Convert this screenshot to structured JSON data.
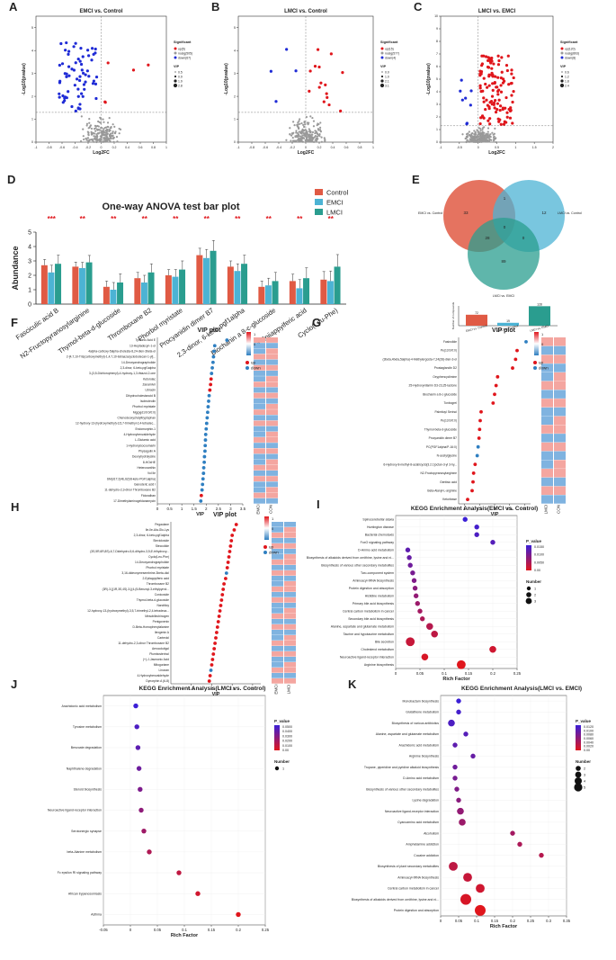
{
  "panels": {
    "A": {
      "letter": "A",
      "title": "EMCI vs. Control",
      "xlabel": "Log2FC",
      "ylabel": "-Log10(pvalue)",
      "legend_title": "Significant",
      "legend": [
        "up(5)",
        "nosig(505)",
        "down(67)"
      ],
      "vip_title": "VIP",
      "vip_vals": [
        "0.5",
        "0.9",
        "1.9",
        "2.8"
      ],
      "xticks": [
        "-1",
        "-0.8",
        "-0.6",
        "-0.4",
        "-0.2",
        "0",
        "0.2",
        "0.4",
        "0.6",
        "0.8",
        "1"
      ],
      "yticks": [
        "0",
        "1",
        "2",
        "3",
        "4",
        "5"
      ]
    },
    "B": {
      "letter": "B",
      "title": "LMCI vs. Control",
      "xlabel": "Log2FC",
      "ylabel": "-Log10(pvalue)",
      "legend_title": "Significant",
      "legend": [
        "up(15)",
        "nosig(577)",
        "down(4)"
      ],
      "vip_title": "VIP",
      "vip_vals": [
        "0.0",
        "1.0",
        "2.1",
        "3.1"
      ],
      "xticks": [
        "-1",
        "-0.8",
        "-0.6",
        "-0.4",
        "-0.2",
        "0",
        "0.2",
        "0.4",
        "0.6",
        "0.8",
        "1"
      ],
      "yticks": [
        "0",
        "1",
        "2",
        "3",
        "4",
        "5"
      ]
    },
    "C": {
      "letter": "C",
      "title": "LMCI vs. EMCI",
      "xlabel": "Log2FC",
      "ylabel": "-Log10(pvalue)",
      "legend_title": "Significant",
      "legend": [
        "up(120)",
        "nosig(893)",
        "down(8)"
      ],
      "vip_title": "VIP",
      "vip_vals": [
        "0.6",
        "1.2",
        "1.8",
        "2.4"
      ],
      "xticks": [
        "-1",
        "-0.5",
        "0",
        "0.5",
        "1",
        "1.5",
        "2"
      ],
      "yticks": [
        "0",
        "1",
        "2",
        "3",
        "4",
        "5",
        "6",
        "7",
        "8",
        "9",
        "10"
      ]
    },
    "E": {
      "letter": "E",
      "venn_labels": [
        "EMCI vs. Control",
        "LMCI vs. Control",
        "LMCI vs. EMCI"
      ],
      "venn_counts": [
        "33",
        "1",
        "12",
        "0",
        "28",
        "0",
        "89"
      ],
      "bar_ylabel": "Number of compounds",
      "bar_cats": [
        "EMCI vs. Control",
        "LMCI vs. Control",
        "LMCI vs. EMCI"
      ],
      "bar_vals": [
        "72",
        "19",
        "128"
      ]
    },
    "H": {
      "letter": "H",
      "title": "VIP plot",
      "xlabel": "VIP",
      "legend": [
        "up",
        "down"
      ],
      "heat_cols": [
        "EMCI",
        "LMCI"
      ]
    }
  },
  "chart_data": [
    {
      "id": "D",
      "type": "bar",
      "letter": "D",
      "title": "One-way ANOVA test bar plot",
      "ylabel": "Abundance",
      "ylim": [
        0,
        5
      ],
      "yticks": [
        "0",
        "1",
        "2",
        "3",
        "4",
        "5"
      ],
      "categories": [
        "Fasciculic acid B",
        "N2-Fructopyranosylarginine",
        "Thymol-beta-d-glucoside",
        "Thromboxane B2",
        "Phorbol myristate",
        "Procyanidin dimer B7",
        "2,3-dinor, 6-keto-pgf1alpha",
        "Biochanin a 8-c-glucoside",
        "3-Epiiappyiferic acid",
        "Cyclo(Leu-Phe)"
      ],
      "series": [
        {
          "name": "Control",
          "color": "#e05a44",
          "values": [
            2.7,
            2.6,
            1.2,
            1.8,
            2.0,
            3.4,
            2.6,
            1.2,
            1.6,
            1.7
          ]
        },
        {
          "name": "EMCI",
          "color": "#4cb3d4",
          "values": [
            2.2,
            2.5,
            1.0,
            1.5,
            1.9,
            3.2,
            2.3,
            1.3,
            1.1,
            1.6
          ]
        },
        {
          "name": "LMCI",
          "color": "#2a9d8f",
          "values": [
            2.8,
            2.9,
            1.5,
            2.2,
            2.4,
            3.7,
            2.8,
            1.6,
            1.8,
            2.6
          ]
        }
      ],
      "errors": [
        0.5,
        0.4,
        0.5,
        0.5,
        0.5,
        0.6,
        0.5,
        0.5,
        0.6,
        0.7
      ],
      "stars": [
        "***",
        "**",
        "**",
        "**",
        "**",
        "**",
        "**",
        "**",
        "**",
        "**"
      ]
    },
    {
      "id": "F",
      "type": "scatter",
      "letter": "F",
      "title": "VIP plot",
      "xlabel": "VIP",
      "xlim": [
        0,
        3.5
      ],
      "xticks": [
        "0",
        "0.5",
        "1",
        "1.5",
        "2",
        "2.5",
        "3",
        "3.5"
      ],
      "legend": [
        "up",
        "down"
      ],
      "heat_cols": [
        "EMCI",
        "CON"
      ],
      "scale_vals": [
        "0",
        "1"
      ],
      "labels": [
        "Tymonic Acid E",
        "13-Heptadecyn-1-ol",
        "4alpha-carboxy-5alpha-cholesta-8,24-dien-3beta-ol",
        "2-[4,7,10-Tris(carboxymethyl)-1,4,7,10-tetraazacyclododecan-1-yl]...",
        "14-Deoxyandrographolide",
        "2,3-dinor, 6-keto-pgf1alpha",
        "3-(3,5-Dichlorophenyl)-4-hydroxy-1,3-thiazol-2-one",
        "Ketorolac",
        "Zanamivir",
        "Libracin",
        "Dihydrocholestanoid B",
        "Isobruteolin",
        "Phorbol myristate",
        "Mg(pgd1/0:0/0:0)",
        "Chenodeoxycholyltryptophan",
        "12-hydroxy-13-(hydroxymethyl)-3,5,7-trimethyl-2,4-tetradec...",
        "Endomorphin-1",
        "4-Hydroxybenzaldehyde",
        "L-Glutamic acid",
        "1-Hydroxyisocoumarin",
        "Physagulin A",
        "Deoxyhydrolysine",
        "8-HOxHE",
        "Heteroxanthin",
        "Vol Ile",
        "SM(d17:2(4E,6Z)/8-keto-PGF1alpha)",
        "Ganoderic acid I",
        "11-dehydro-2,3-dinor Thromboxane B2",
        "Fidoxalban",
        "17-Dimethylaminogeldanamycin"
      ],
      "values": [
        2.85,
        2.35,
        2.32,
        2.3,
        2.28,
        2.25,
        2.22,
        2.2,
        2.18,
        2.15,
        2.12,
        2.1,
        2.08,
        2.06,
        2.04,
        2.02,
        2.0,
        1.98,
        1.97,
        1.96,
        1.95,
        1.93,
        1.92,
        1.9,
        1.89,
        1.87,
        1.85,
        1.83,
        1.8,
        1.78
      ],
      "dirs": [
        "d",
        "d",
        "d",
        "d",
        "d",
        "d",
        "d",
        "u",
        "u",
        "u",
        "d",
        "d",
        "d",
        "d",
        "d",
        "d",
        "d",
        "d",
        "d",
        "d",
        "d",
        "d",
        "d",
        "d",
        "d",
        "d",
        "d",
        "d",
        "u",
        "d"
      ]
    },
    {
      "id": "G",
      "type": "scatter",
      "letter": "G",
      "title": "VIP plot",
      "xlabel": "VIP",
      "xlim": [
        0.8,
        3.2
      ],
      "xticks": [
        "1",
        "1.5",
        "2",
        "2.5",
        "3"
      ],
      "legend": [
        "up",
        "down"
      ],
      "heat_cols": [
        "LMCI",
        "CON"
      ],
      "scale_vals": [
        "0",
        "1"
      ],
      "labels": [
        "Fasinolide",
        "Pe(13:0/0:0)",
        "(3beta,4beta,5alpha)-4-Methylergosta-7,24(28)-dien-3-ol",
        "Prostaglandin D2",
        "Oxyphencyclimine",
        "25-Hydroxyvitamin D3-23,25-lactone",
        "Biochanin a 8-c-glucoside",
        "Tonbogrel",
        "Palmitoyl Serinol",
        "Pe(13:0/0:0)",
        "Thymol-beta-d-glucoside",
        "Procyanidin dimer B7",
        "PC(PGF1alpha/P-16:0)",
        "N-acetylglycine",
        "6-Hydroxy-8-methyl-8-azabicyclo[3.2.1]octan-3-yl 3-hy...",
        "N2-Fructopyranosylarginine",
        "Gentisic acid",
        "Beta-Alanyl-L-arginine",
        "Ketorlease"
      ],
      "values": [
        3.05,
        2.75,
        2.7,
        2.6,
        2.1,
        2.05,
        2.0,
        1.95,
        1.55,
        1.52,
        1.5,
        1.48,
        1.45,
        1.42,
        1.35,
        1.3,
        1.28,
        1.25,
        1.1
      ],
      "dirs": [
        "d",
        "u",
        "u",
        "u",
        "u",
        "u",
        "u",
        "u",
        "u",
        "u",
        "u",
        "u",
        "d",
        "d",
        "u",
        "u",
        "u",
        "u",
        "u"
      ]
    },
    {
      "id": "H",
      "type": "scatter",
      "letter": "H",
      "title": "VIP plot",
      "xlabel": "VIP",
      "xlim": [
        1,
        3.2
      ],
      "xticks": [
        "1.5",
        "2",
        "2.5",
        "3"
      ],
      "legend": [
        "up",
        "down"
      ],
      "heat_cols": [
        "EMCI",
        "LMCI"
      ],
      "scale_vals": [
        "0",
        "1"
      ],
      "labels": [
        "Pegaulane",
        "Ile-Ile-Ala-Glu-Lys",
        "2,3-dinor, 6-keto-pgf1alpha",
        "Stevioloside",
        "Steccolide",
        "(3S,5R,6R,8S)-6,7-Didehydro-5,6-dihydro-3,5,6'-trihydroxy...",
        "Cyclo(Leu-Phe)",
        "14-Deoxyandrographolide",
        "Phorbol myristate",
        "3,16-dideoxymesembrine-3beta-diol",
        "2-Epiiappyiferic acid",
        "Thromboxane B2",
        "(3R)-3-[(1R,3S,4S)-3-[(4-(5-Benzoyl-3-ethylpyrrol...",
        "Conicoside",
        "Thymol-beta-d-glucoside",
        "Narcitiloy",
        "12-hydroxy-13-(hydroxymethyl)-3,5,7-trimethyl-2,4-tetradeca...",
        "Mesobilirubinogen",
        "Pentgoxenin",
        "D-Beta-Homophenylalanine",
        "Ilexgenin A",
        "Cartexlol",
        "11-dehydro-2,3-dinor Thromboxane B2",
        "Aerocolutigol",
        "Plumbosterinol",
        "(+)-J-Jasmonic Acid",
        "Mitoguriane",
        "Linoxan",
        "4-Hydroxybenzaldehyde",
        "Dynorphin A (6-8)"
      ],
      "values": [
        2.6,
        2.55,
        2.5,
        2.48,
        2.46,
        2.44,
        2.42,
        2.4,
        2.38,
        2.36,
        2.34,
        2.3,
        2.28,
        2.26,
        2.24,
        2.22,
        2.2,
        2.18,
        2.16,
        2.14,
        2.12,
        2.1,
        2.08,
        2.06,
        2.04,
        2.02,
        2.0,
        1.98,
        1.96,
        1.94
      ],
      "dirs": [
        "u",
        "u",
        "u",
        "u",
        "u",
        "u",
        "u",
        "u",
        "u",
        "d",
        "u",
        "u",
        "u",
        "u",
        "u",
        "u",
        "u",
        "u",
        "u",
        "u",
        "u",
        "u",
        "u",
        "u",
        "u",
        "u",
        "u",
        "d",
        "u",
        "u"
      ]
    },
    {
      "id": "I",
      "type": "scatter",
      "letter": "I",
      "title": "KEGG Enrichment Analysis(EMCI vs. Control)",
      "xlabel": "Rich Factor",
      "xlim": [
        0,
        0.25
      ],
      "xticks": [
        "0",
        "0.05",
        "0.1",
        "0.15",
        "0.2",
        "0.25"
      ],
      "legend_title": "P_value",
      "scale_vals": [
        "0.0150",
        "0.0100",
        "0.0050",
        "0.00"
      ],
      "size_title": "Number",
      "size_vals": [
        "1",
        "2",
        "3"
      ],
      "labels": [
        "Spinocerebellar ataxia",
        "Huntington disease",
        "Bacterial chemotaxis",
        "FoxO signaling pathway",
        "D-Amino acid metabolism",
        "Biosynthesis of alkaloids derived from ornithine, lysine and ni...",
        "Biosynthesis of various other secondary metabolites",
        "Two-component system",
        "Aminoacyl-tRNA biosynthesis",
        "Protein digestion and absorption",
        "Histidine metabolism",
        "Primary bile acid biosynthesis",
        "Central carbon metabolism in cancer",
        "Secondary bile acid biosynthesis",
        "Alanine, aspartate and glutamate metabolism",
        "Taurine and hypotaurine metabolism",
        "Bile secretion",
        "Cholesterol metabolism",
        "Neuroactive ligand-receptor interaction",
        "Arginine biosynthesis"
      ],
      "x": [
        0.143,
        0.167,
        0.167,
        0.2,
        0.025,
        0.028,
        0.03,
        0.035,
        0.038,
        0.04,
        0.042,
        0.045,
        0.05,
        0.055,
        0.07,
        0.08,
        0.03,
        0.2,
        0.06,
        0.135
      ],
      "count": [
        1,
        1,
        1,
        1,
        1,
        1,
        1,
        1,
        1,
        1,
        1,
        1,
        1,
        1,
        2,
        2,
        3,
        2,
        2,
        3
      ]
    },
    {
      "id": "J",
      "type": "scatter",
      "letter": "J",
      "title": "KEGG Enrichment Analysis(LMCI vs. Control)",
      "xlabel": "Rich Factor",
      "xlim": [
        -0.05,
        0.25
      ],
      "xticks": [
        "-0.05",
        "0",
        "0.05",
        "0.1",
        "0.15",
        "0.2",
        "0.25"
      ],
      "legend_title": "P_value",
      "scale_vals": [
        "0.0500",
        "0.0400",
        "0.0300",
        "0.0200",
        "0.0100",
        "0.00"
      ],
      "size_title": "Number",
      "size_vals": [
        "1"
      ],
      "labels": [
        "Arachidonic acid metabolism",
        "Tyrosine metabolism",
        "Benzoate degradation",
        "Naphthalene degradation",
        "Steroid biosynthesis",
        "Neuroactive ligand-receptor interaction",
        "Serotonergic synapse",
        "beta-Alanine metabolism",
        "Fc epsilon RI signaling pathway",
        "African trypanosomiasis",
        "Asthma"
      ],
      "x": [
        0.01,
        0.012,
        0.014,
        0.016,
        0.018,
        0.02,
        0.025,
        0.035,
        0.09,
        0.125,
        0.2
      ],
      "count": [
        1,
        1,
        1,
        1,
        1,
        1,
        1,
        1,
        1,
        1,
        1
      ]
    },
    {
      "id": "K",
      "type": "scatter",
      "letter": "K",
      "title": "KEGG Enrichment Analysis(LMCI vs. EMCI)",
      "xlabel": "Rich Factor",
      "xlim": [
        0,
        0.35
      ],
      "xticks": [
        "0",
        "0.05",
        "0.1",
        "0.15",
        "0.2",
        "0.25",
        "0.3",
        "0.35"
      ],
      "legend_title": "P_value",
      "scale_vals": [
        "0.0120",
        "0.0100",
        "0.0080",
        "0.0060",
        "0.0040",
        "0.0020",
        "0.00"
      ],
      "size_title": "Number",
      "size_vals": [
        "2",
        "3",
        "4",
        "5"
      ],
      "labels": [
        "Monobactam biosynthesis",
        "Glutathione metabolism",
        "Biosynthesis of various antibiotics",
        "Alanine, aspartate and glutamate metabolism",
        "Arachidonic acid metabolism",
        "Arginine biosynthesis",
        "Tropane, piperidine and pyridine alkaloid biosynthesis",
        "D-Amino acid metabolism",
        "Biosynthesis of various other secondary metabolites",
        "Lysine degradation",
        "Neuroactive ligand-receptor interaction",
        "Cyanoamino acid metabolism",
        "Alcoholism",
        "Amphetamine addiction",
        "Cocaine addiction",
        "Biosynthesis of plant secondary metabolites",
        "Aminoacyl-tRNA biosynthesis",
        "Central carbon metabolism in cancer",
        "Biosynthesis of alkaloids derived from ornithine, lysine and ni...",
        "Protein digestion and absorption"
      ],
      "x": [
        0.05,
        0.05,
        0.03,
        0.07,
        0.04,
        0.09,
        0.04,
        0.04,
        0.045,
        0.05,
        0.055,
        0.06,
        0.2,
        0.22,
        0.28,
        0.035,
        0.075,
        0.11,
        0.07,
        0.11
      ],
      "count": [
        1,
        1,
        2,
        1,
        1,
        1,
        1,
        1,
        1,
        1,
        2,
        2,
        1,
        1,
        1,
        3,
        3,
        3,
        4,
        4
      ]
    }
  ]
}
